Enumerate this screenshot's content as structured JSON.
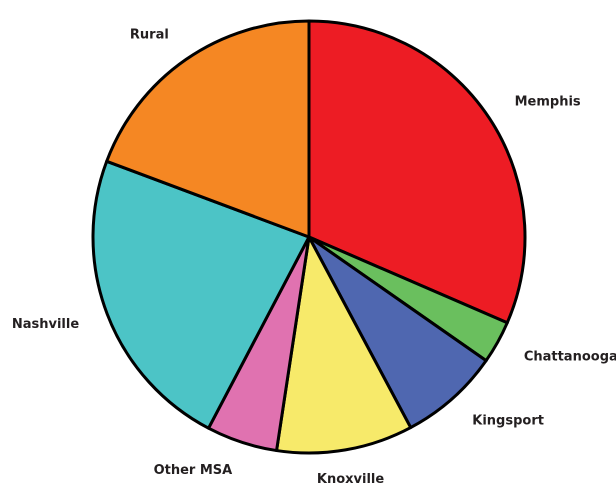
{
  "chart_data": {
    "type": "pie",
    "categories": [
      "Memphis",
      "Chattanooga",
      "Kingsport",
      "Knoxville",
      "Other MSA",
      "Nashville",
      "Rural"
    ],
    "values": [
      31.5,
      3.2,
      7.5,
      10.2,
      5.3,
      23,
      19.3
    ],
    "colors": [
      "#ed1c24",
      "#6abf5e",
      "#4f67b0",
      "#f7ea6a",
      "#e072b0",
      "#4cc4c6",
      "#f58723"
    ]
  }
}
